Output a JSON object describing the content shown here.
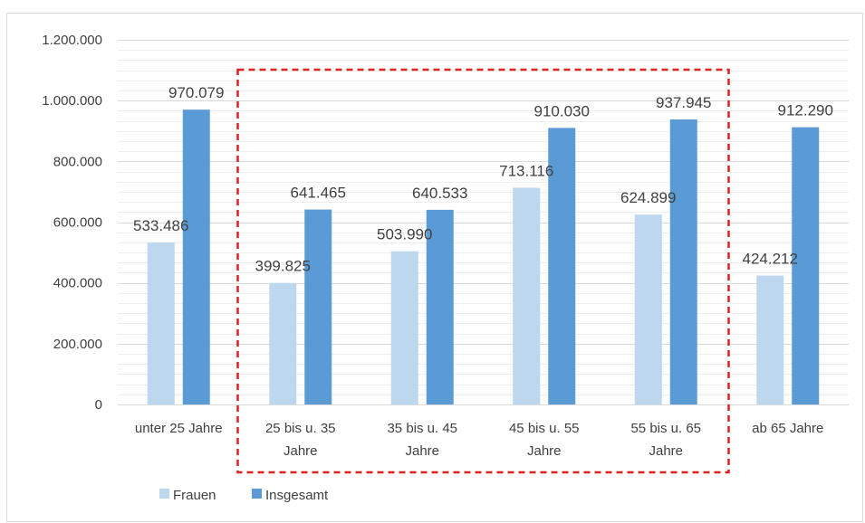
{
  "colors": {
    "frauen": "#bdd7ee",
    "insgesamt": "#5b9bd5",
    "grid": "#d9d9d9",
    "axis": "#d9d9d9",
    "text": "#404040",
    "highlight": "#e02020",
    "frame": "#d9d9d9"
  },
  "chart_data": {
    "type": "bar",
    "title": "",
    "xlabel": "",
    "ylabel": "",
    "ylim": [
      0,
      1200000
    ],
    "yticks": [
      0,
      200000,
      400000,
      600000,
      800000,
      1000000,
      1200000
    ],
    "ytick_labels": [
      "0",
      "200.000",
      "400.000",
      "600.000",
      "800.000",
      "1.000.000",
      "1.200.000"
    ],
    "minor_grid_step": 33333.33,
    "grid": true,
    "legend_position": "bottom-left",
    "categories": [
      [
        "unter 25 Jahre"
      ],
      [
        "25 bis u. 35",
        "Jahre"
      ],
      [
        "35 bis u. 45",
        "Jahre"
      ],
      [
        "45 bis u. 55",
        "Jahre"
      ],
      [
        "55 bis u. 65",
        "Jahre"
      ],
      [
        "ab 65 Jahre"
      ]
    ],
    "series": [
      {
        "name": "Frauen",
        "values": [
          533486,
          399825,
          503990,
          713116,
          624899,
          424212
        ],
        "labels": [
          "533.486",
          "399.825",
          "503.990",
          "713.116",
          "624.899",
          "424.212"
        ]
      },
      {
        "name": "Insgesamt",
        "values": [
          970079,
          641465,
          640533,
          910030,
          937945,
          912290
        ],
        "labels": [
          "970.079",
          "641.465",
          "640.533",
          "910.030",
          "937.945",
          "912.290"
        ]
      }
    ],
    "highlight": {
      "style": "dashed-box",
      "from_category": 1,
      "to_category": 4
    }
  }
}
